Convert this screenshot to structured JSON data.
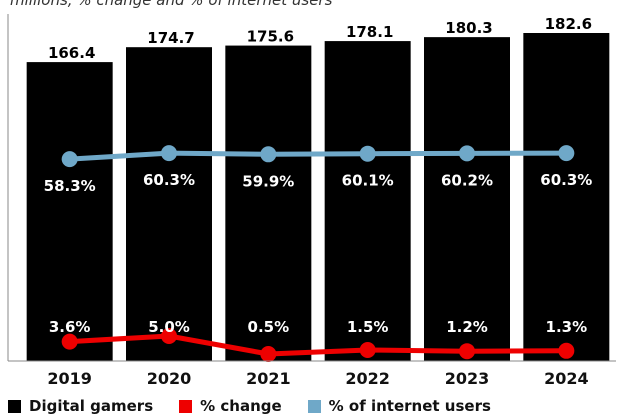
{
  "subtitle": "millions, % change and % of internet users",
  "legend": {
    "gamers": "Digital gamers",
    "change": "% change",
    "internet": "% of internet users"
  },
  "colors": {
    "bars": "#000000",
    "change": "#ee0000",
    "internet": "#6fa8c8"
  },
  "chart_data": {
    "type": "bar",
    "categories": [
      "2019",
      "2020",
      "2021",
      "2022",
      "2023",
      "2024"
    ],
    "series": [
      {
        "name": "Digital gamers",
        "type": "bar",
        "values": [
          166.4,
          174.7,
          175.6,
          178.1,
          180.3,
          182.6
        ],
        "labels": [
          "166.4",
          "174.7",
          "175.6",
          "178.1",
          "180.3",
          "182.6"
        ]
      },
      {
        "name": "% of internet users",
        "type": "line",
        "values": [
          58.3,
          60.3,
          59.9,
          60.1,
          60.2,
          60.3
        ],
        "labels": [
          "58.3%",
          "60.3%",
          "59.9%",
          "60.1%",
          "60.2%",
          "60.3%"
        ]
      },
      {
        "name": "% change",
        "type": "line",
        "values": [
          3.6,
          5.0,
          0.5,
          1.5,
          1.2,
          1.3
        ],
        "labels": [
          "3.6%",
          "5.0%",
          "0.5%",
          "1.5%",
          "1.2%",
          "1.3%"
        ]
      }
    ],
    "legend_position": "bottom",
    "grid": false
  }
}
